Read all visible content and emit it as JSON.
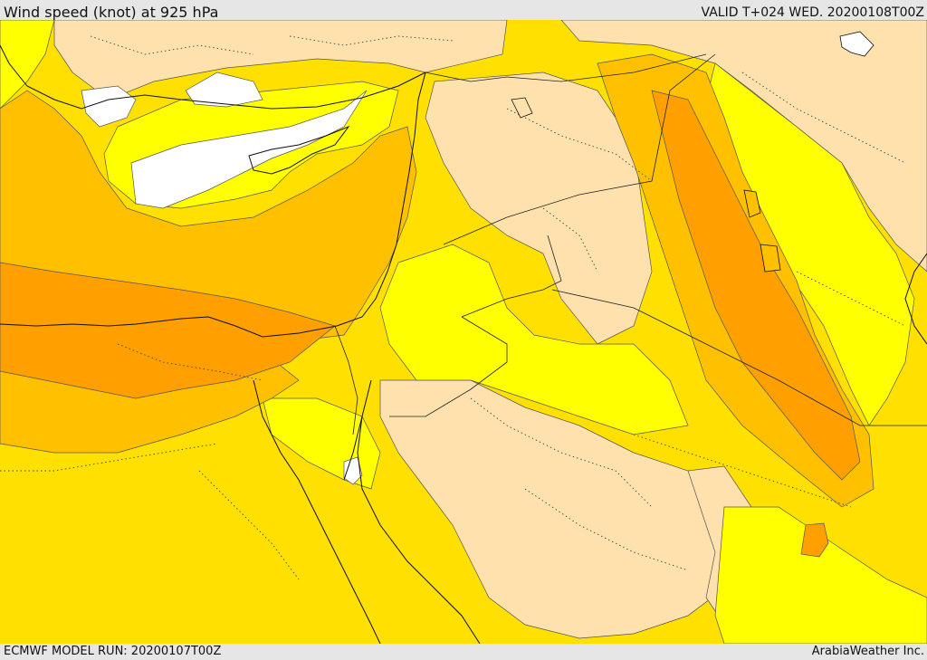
{
  "header": {
    "title": "Wind speed (knot) at 925 hPa",
    "valid": "VALID T+024 WED. 20200108T00Z"
  },
  "footer": {
    "model_run": "ECMWF MODEL RUN: 20200107T00Z",
    "credit": "ArabiaWeather Inc."
  },
  "colors": {
    "white": "#ffffff",
    "tan": "#fee1ac",
    "light_yellow": "#ffff00",
    "yellow": "#ffe000",
    "gold": "#ffc000",
    "orange": "#ff9f00"
  }
}
